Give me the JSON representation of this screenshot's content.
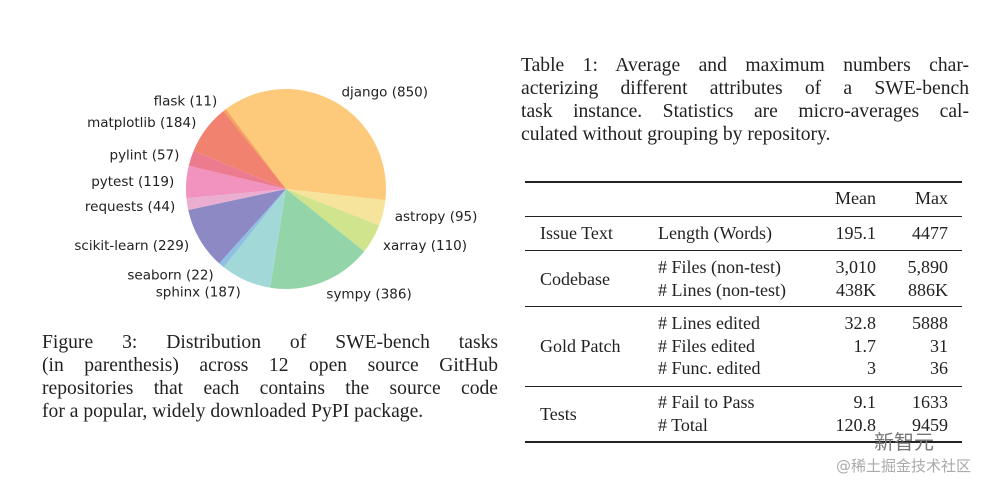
{
  "figure": {
    "caption_lines": [
      "Figure 3:  Distribution of SWE-bench tasks",
      "(in parenthesis) across 12 open source GitHub",
      "repositories that each contains the source code",
      "for a popular, widely downloaded PyPI package."
    ]
  },
  "chart_data": {
    "type": "pie",
    "title": "",
    "slices": [
      {
        "label": "django (850)",
        "name": "django",
        "value": 850,
        "color": "#fdc97a"
      },
      {
        "label": "astropy (95)",
        "name": "astropy",
        "value": 95,
        "color": "#f6e39c"
      },
      {
        "label": "xarray (110)",
        "name": "xarray",
        "value": 110,
        "color": "#cfe48c"
      },
      {
        "label": "sympy (386)",
        "name": "sympy",
        "value": 386,
        "color": "#93d5a8"
      },
      {
        "label": "sphinx (187)",
        "name": "sphinx",
        "value": 187,
        "color": "#a2d9d8"
      },
      {
        "label": "seaborn (22)",
        "name": "seaborn",
        "value": 22,
        "color": "#8fc0e2"
      },
      {
        "label": "scikit-learn (229)",
        "name": "scikit-learn",
        "value": 229,
        "color": "#8c89c4"
      },
      {
        "label": "requests (44)",
        "name": "requests",
        "value": 44,
        "color": "#eaaed0"
      },
      {
        "label": "pytest (119)",
        "name": "pytest",
        "value": 119,
        "color": "#f192bf"
      },
      {
        "label": "pylint (57)",
        "name": "pylint",
        "value": 57,
        "color": "#ed7b90"
      },
      {
        "label": "matplotlib (184)",
        "name": "matplotlib",
        "value": 184,
        "color": "#f1826f"
      },
      {
        "label": "flask (11)",
        "name": "flask",
        "value": 11,
        "color": "#f5a25e"
      }
    ]
  },
  "table": {
    "caption_lines": [
      "Table 1: Average and maximum numbers char-",
      "acterizing different attributes of a SWE-bench",
      "task instance. Statistics are micro-averages cal-",
      "culated without grouping by repository."
    ],
    "headers": {
      "mean": "Mean",
      "max": "Max"
    },
    "groups": [
      {
        "name": "Issue Text",
        "rows": [
          {
            "attr": "Length (Words)",
            "mean": "195.1",
            "max": "4477"
          }
        ]
      },
      {
        "name": "Codebase",
        "rows": [
          {
            "attr": "# Files (non-test)",
            "mean": "3,010",
            "max": "5,890"
          },
          {
            "attr": "# Lines (non-test)",
            "mean": "438K",
            "max": "886K"
          }
        ]
      },
      {
        "name": "Gold Patch",
        "rows": [
          {
            "attr": "# Lines edited",
            "mean": "32.8",
            "max": "5888"
          },
          {
            "attr": "# Files edited",
            "mean": "1.7",
            "max": "31"
          },
          {
            "attr": "# Func. edited",
            "mean": "3",
            "max": "36"
          }
        ]
      },
      {
        "name": "Tests",
        "rows": [
          {
            "attr": "# Fail to Pass",
            "mean": "9.1",
            "max": "1633"
          },
          {
            "attr": "# Total",
            "mean": "120.8",
            "max": "9459"
          }
        ]
      }
    ]
  },
  "watermark": {
    "brand": "新智元",
    "source": "@稀土掘金技术社区"
  }
}
